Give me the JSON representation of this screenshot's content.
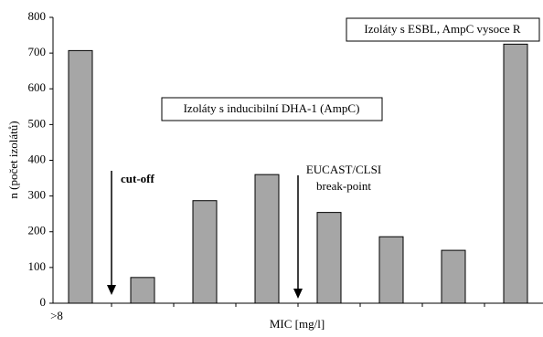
{
  "chart_data": {
    "type": "bar",
    "categories": [
      ">8",
      null,
      null,
      null,
      null,
      null,
      null,
      null
    ],
    "values": [
      707,
      72,
      287,
      360,
      254,
      186,
      148,
      725
    ],
    "color": "#a6a6a6",
    "ylim": [
      0,
      800
    ],
    "yticks": [
      0,
      100,
      200,
      300,
      400,
      500,
      600,
      700,
      800
    ],
    "grid": false,
    "y_label": "n (počet izolátů)",
    "x_label": "MIC [mg/l]",
    "annotations": [
      "Izoláty s ESBL, AmpC vysoce R",
      "Izoláty s inducibilní DHA-1 (AmpC)",
      "cut-off",
      [
        "EUCAST/CLSI",
        "break-point"
      ]
    ]
  }
}
